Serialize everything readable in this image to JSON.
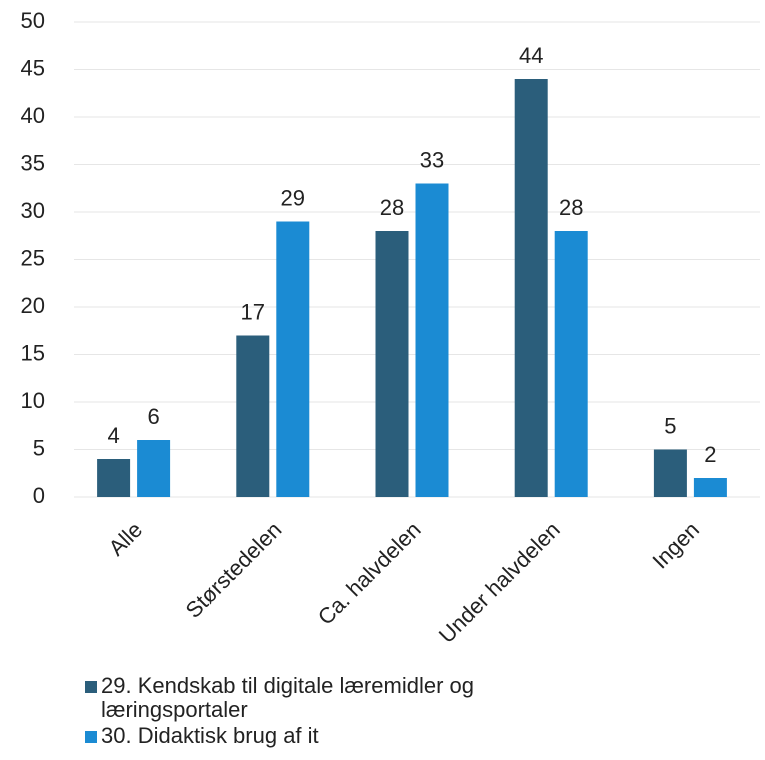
{
  "chart_data": {
    "type": "bar",
    "categories": [
      "Alle",
      "Størstedelen",
      "Ca. halvdelen",
      "Under halvdelen",
      "Ingen"
    ],
    "series": [
      {
        "name": "29. Kendskab til digitale læremidler og læringsportaler",
        "color": "#2b5e7b",
        "values": [
          4,
          17,
          28,
          44,
          5
        ]
      },
      {
        "name": "30. Didaktisk brug af it",
        "color": "#1b8bd3",
        "values": [
          6,
          29,
          33,
          28,
          2
        ]
      }
    ],
    "ylim": [
      0,
      50
    ],
    "yticks": [
      0,
      5,
      10,
      15,
      20,
      25,
      30,
      35,
      40,
      45,
      50
    ],
    "grid": true
  }
}
